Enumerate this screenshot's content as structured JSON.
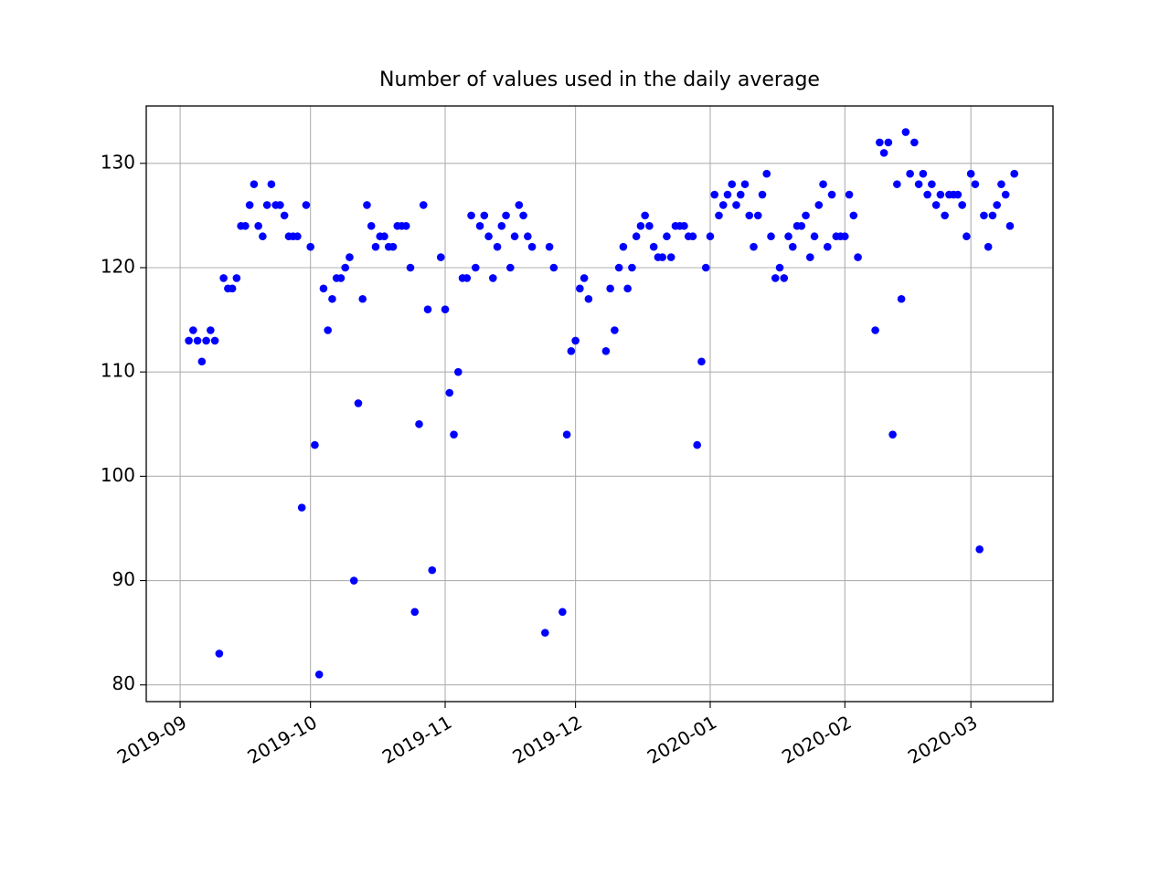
{
  "chart_data": {
    "type": "scatter",
    "title": "Number of values used in the daily average",
    "color": "#0000ff",
    "grid": true,
    "xlim": [
      18132.2,
      18340.9
    ],
    "ylim": [
      78.4,
      135.5
    ],
    "xticks": [
      {
        "value": 18140,
        "label": "2019-09"
      },
      {
        "value": 18170,
        "label": "2019-10"
      },
      {
        "value": 18201,
        "label": "2019-11"
      },
      {
        "value": 18231,
        "label": "2019-12"
      },
      {
        "value": 18262,
        "label": "2020-01"
      },
      {
        "value": 18293,
        "label": "2020-02"
      },
      {
        "value": 18322,
        "label": "2020-03"
      }
    ],
    "yticks": [
      80,
      90,
      100,
      110,
      120,
      130
    ],
    "x": [
      18142,
      18143,
      18144,
      18145,
      18146,
      18147,
      18148,
      18149,
      18150,
      18151,
      18152,
      18153,
      18154,
      18155,
      18156,
      18157,
      18158,
      18159,
      18160,
      18161,
      18162,
      18163,
      18164,
      18165,
      18166,
      18167,
      18168,
      18169,
      18170,
      18171,
      18172,
      18173,
      18174,
      18175,
      18176,
      18177,
      18178,
      18179,
      18180,
      18181,
      18182,
      18183,
      18184,
      18185,
      18186,
      18187,
      18188,
      18189,
      18190,
      18191,
      18192,
      18193,
      18194,
      18195,
      18196,
      18197,
      18198,
      18200,
      18201,
      18202,
      18203,
      18204,
      18205,
      18206,
      18207,
      18208,
      18209,
      18210,
      18211,
      18212,
      18213,
      18214,
      18215,
      18216,
      18217,
      18218,
      18219,
      18220,
      18221,
      18224,
      18225,
      18226,
      18228,
      18229,
      18230,
      18231,
      18232,
      18233,
      18234,
      18238,
      18239,
      18240,
      18241,
      18242,
      18243,
      18244,
      18245,
      18246,
      18247,
      18248,
      18249,
      18250,
      18251,
      18252,
      18253,
      18254,
      18255,
      18256,
      18257,
      18258,
      18259,
      18260,
      18261,
      18262,
      18263,
      18264,
      18265,
      18266,
      18267,
      18268,
      18269,
      18270,
      18271,
      18272,
      18273,
      18274,
      18275,
      18276,
      18277,
      18278,
      18279,
      18280,
      18281,
      18282,
      18283,
      18284,
      18285,
      18286,
      18287,
      18288,
      18289,
      18290,
      18291,
      18292,
      18293,
      18294,
      18295,
      18296,
      18300,
      18301,
      18302,
      18303,
      18304,
      18305,
      18306,
      18307,
      18308,
      18309,
      18310,
      18311,
      18312,
      18313,
      18314,
      18315,
      18316,
      18317,
      18318,
      18319,
      18320,
      18321,
      18322,
      18323,
      18324,
      18325,
      18326,
      18327,
      18328,
      18329,
      18330,
      18331,
      18332
    ],
    "values": [
      113,
      114,
      113,
      111,
      113,
      114,
      113,
      83,
      119,
      118,
      118,
      119,
      124,
      124,
      126,
      128,
      124,
      123,
      126,
      128,
      126,
      126,
      125,
      123,
      123,
      123,
      97,
      126,
      122,
      103,
      81,
      118,
      114,
      117,
      119,
      119,
      120,
      121,
      90,
      107,
      117,
      126,
      124,
      122,
      123,
      123,
      122,
      122,
      124,
      124,
      124,
      120,
      87,
      105,
      126,
      116,
      91,
      121,
      116,
      108,
      104,
      110,
      119,
      119,
      125,
      120,
      124,
      125,
      123,
      119,
      122,
      124,
      125,
      120,
      123,
      126,
      125,
      123,
      122,
      85,
      122,
      120,
      87,
      104,
      112,
      113,
      118,
      119,
      117,
      112,
      118,
      114,
      120,
      122,
      118,
      120,
      123,
      124,
      125,
      124,
      122,
      121,
      121,
      123,
      121,
      124,
      124,
      124,
      123,
      123,
      103,
      111,
      120,
      123,
      127,
      125,
      126,
      127,
      128,
      126,
      127,
      128,
      125,
      122,
      125,
      127,
      129,
      123,
      119,
      120,
      119,
      123,
      122,
      124,
      124,
      125,
      121,
      123,
      126,
      128,
      122,
      127,
      123,
      123,
      123,
      127,
      125,
      121,
      114,
      132,
      131,
      132,
      104,
      128,
      117,
      133,
      129,
      132,
      128,
      129,
      127,
      128,
      126,
      127,
      125,
      127,
      127,
      127,
      126,
      123,
      129,
      128,
      93,
      125,
      122,
      125,
      126,
      128,
      127,
      124,
      129
    ]
  }
}
